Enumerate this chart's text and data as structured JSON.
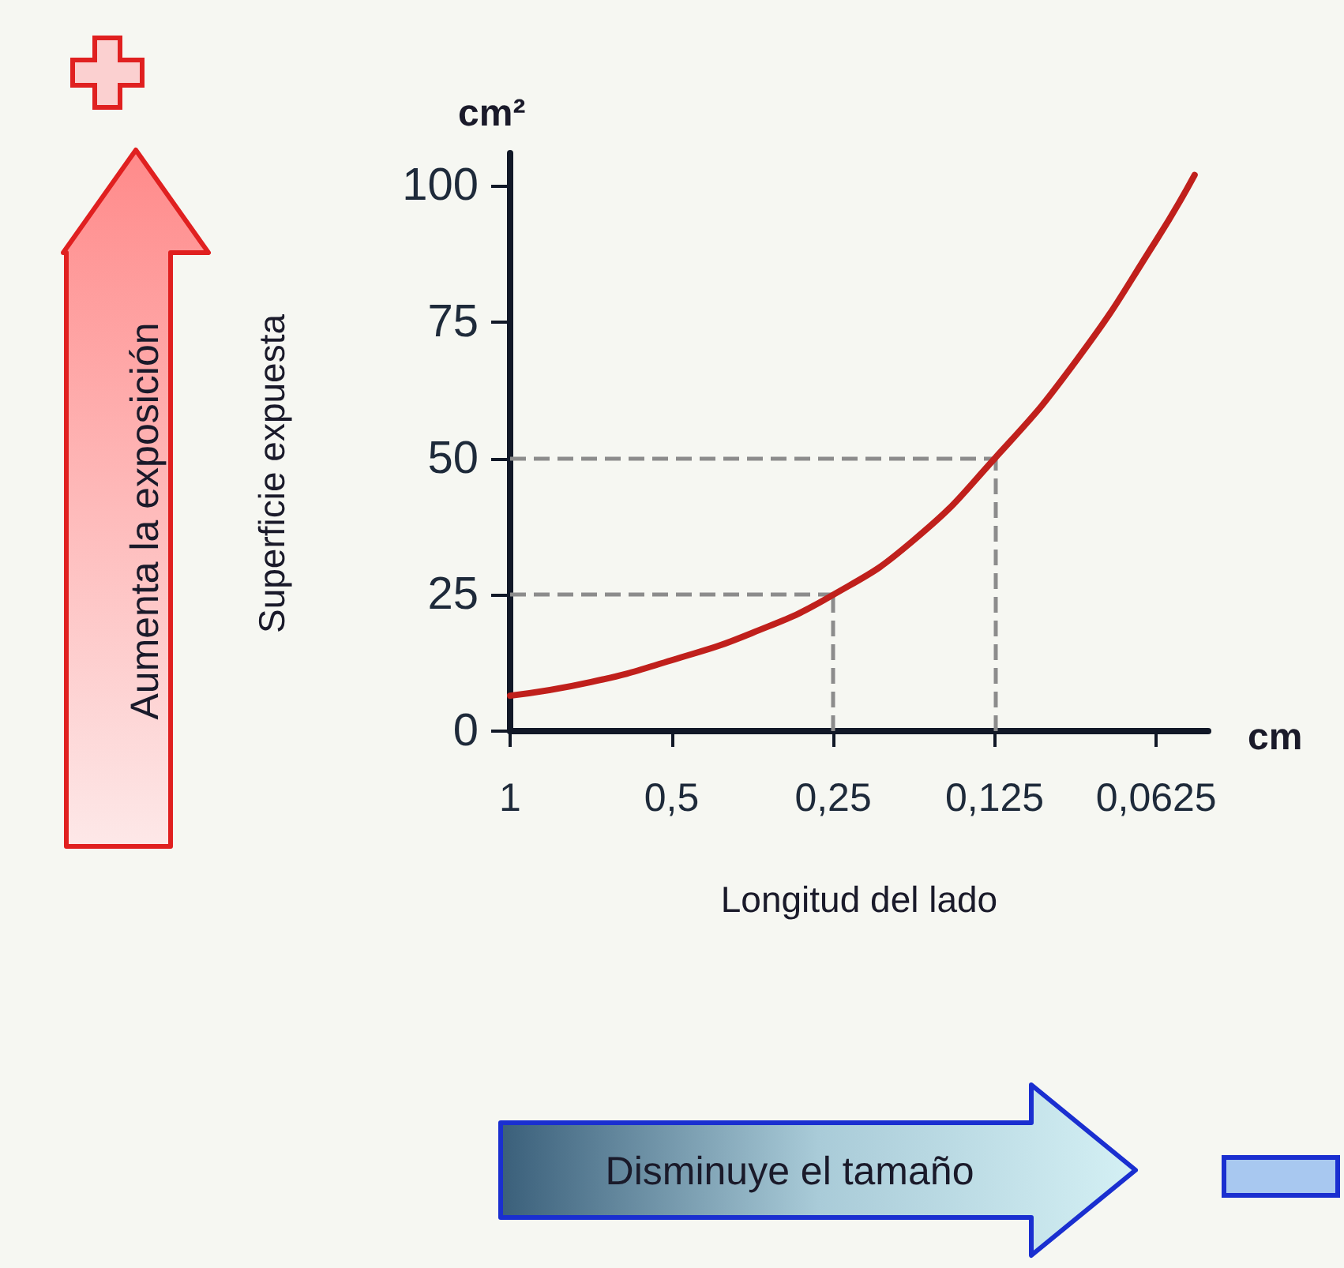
{
  "chart_data": {
    "type": "line",
    "ylabel": "Superficie expuesta",
    "xlabel": "Longitud del lado",
    "annotations": [
      "cm²",
      "cm",
      "Aumenta la exposición",
      "Disminuye el tamaño"
    ],
    "x": [
      1,
      0.707,
      0.5,
      0.354,
      0.25,
      0.177,
      0.125,
      0.088,
      0.0625,
      0.053
    ],
    "series": [
      {
        "color": "#c0201c",
        "values": [
          6.5,
          9,
          13,
          18,
          25,
          35,
          50,
          68,
          90,
          102
        ]
      }
    ],
    "xlim": [
      1,
      0.05
    ],
    "xticks": [
      1,
      {
        "value": 0.5,
        "label": "0,5"
      },
      {
        "value": 0.25,
        "label": "0,25"
      },
      {
        "value": 0.125,
        "label": "0,125"
      },
      {
        "value": 0.0625,
        "label": "0,0625"
      }
    ],
    "ylim": [
      0,
      106
    ],
    "yticks": [
      0,
      25,
      50,
      75,
      100
    ],
    "log": "x",
    "grid": false,
    "marker": "none",
    "line_style": "solid",
    "ref_lines": [
      {
        "axis": "y",
        "value": 25,
        "color": "#8c8c8c",
        "line_style": "dashed"
      },
      {
        "axis": "y",
        "value": 50,
        "color": "#8c8c8c",
        "line_style": "dashed"
      },
      {
        "axis": "x",
        "value": 0.25,
        "color": "#8c8c8c",
        "line_style": "dashed"
      },
      {
        "axis": "x",
        "value": 0.125,
        "color": "#8c8c8c",
        "line_style": "dashed"
      }
    ]
  }
}
